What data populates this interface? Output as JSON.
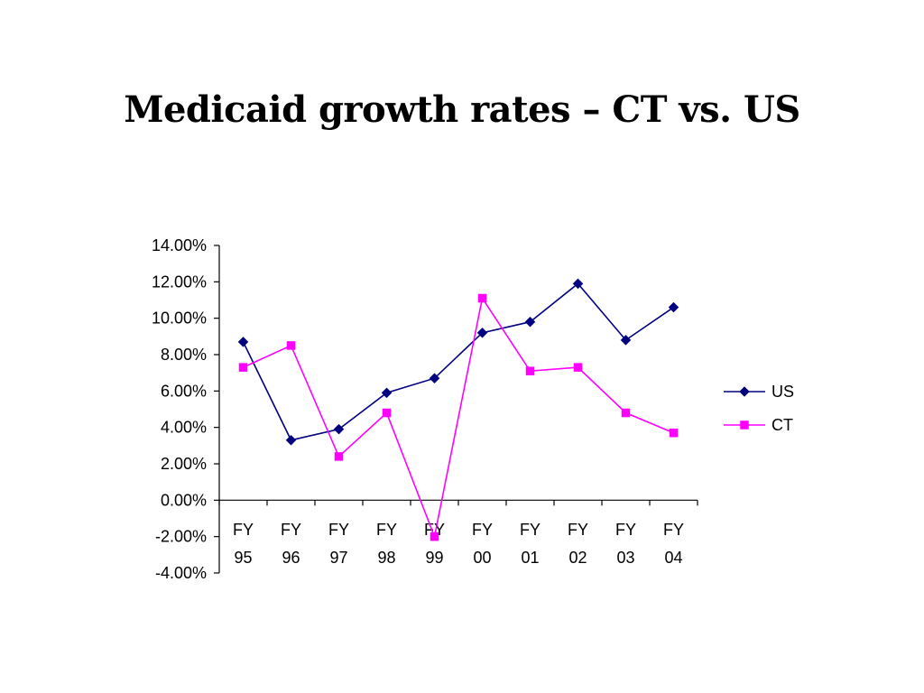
{
  "slide": {
    "title": "Medicaid growth rates – CT vs. US"
  },
  "chart_data": {
    "type": "line",
    "title": "",
    "xlabel": "",
    "ylabel": "",
    "categories": [
      [
        "FY",
        "95"
      ],
      [
        "FY",
        "96"
      ],
      [
        "FY",
        "97"
      ],
      [
        "FY",
        "98"
      ],
      [
        "FY",
        "99"
      ],
      [
        "FY",
        "00"
      ],
      [
        "FY",
        "01"
      ],
      [
        "FY",
        "02"
      ],
      [
        "FY",
        "03"
      ],
      [
        "FY",
        "04"
      ]
    ],
    "ylim": [
      -4,
      14
    ],
    "yticks": [
      14,
      12,
      10,
      8,
      6,
      4,
      2,
      0,
      -2,
      -4
    ],
    "ytick_labels": [
      "14.00%",
      "12.00%",
      "10.00%",
      "8.00%",
      "6.00%",
      "4.00%",
      "2.00%",
      "0.00%",
      "-2.00%",
      "-4.00%"
    ],
    "grid": false,
    "legend_position": "right",
    "series": [
      {
        "name": "US",
        "color": "#000080",
        "marker": "diamond",
        "values": [
          8.7,
          3.3,
          3.9,
          5.9,
          6.7,
          9.2,
          9.8,
          11.9,
          8.8,
          10.6
        ]
      },
      {
        "name": "CT",
        "color": "#ff00ff",
        "marker": "square",
        "values": [
          7.3,
          8.5,
          2.4,
          4.8,
          -2.0,
          11.1,
          7.1,
          7.3,
          4.8,
          3.7
        ]
      }
    ]
  }
}
